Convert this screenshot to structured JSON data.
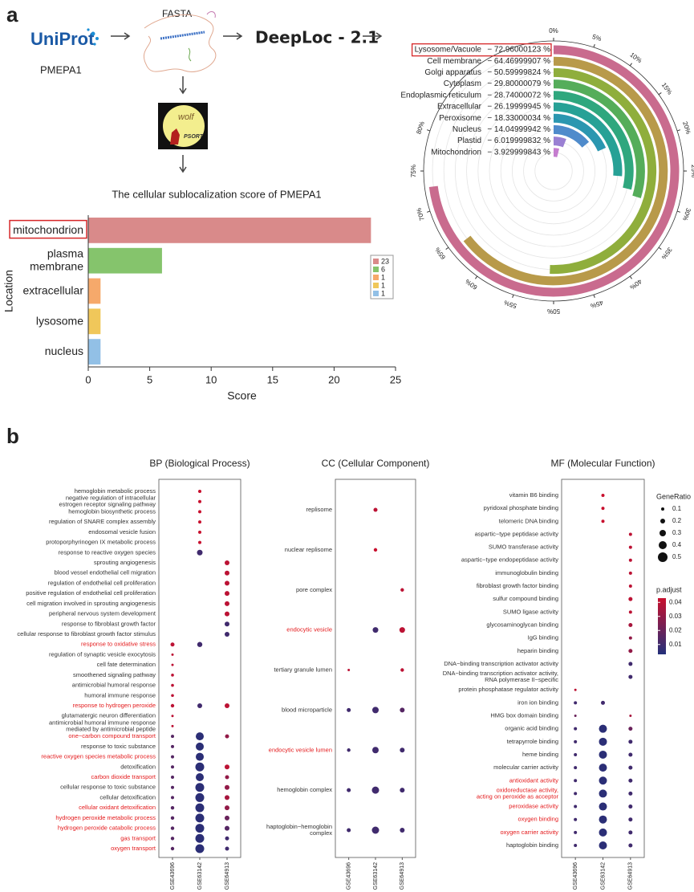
{
  "panel_labels": [
    "a",
    "b"
  ],
  "workflow": {
    "uniprot": "UniProt",
    "protein": "PMEPA1",
    "fasta": "FASTA",
    "deeploc": "DeepLoc - 2.1",
    "psort_wolf": "wolf",
    "psort": "PSORT"
  },
  "chart_data": [
    {
      "type": "barh",
      "title": "The cellular sublocalization score of PMEPA1",
      "categories": [
        "mitochondrion",
        [
          "plasma",
          "membrane"
        ],
        "extracellular",
        "lysosome",
        "nucleus"
      ],
      "values": [
        23,
        6,
        1,
        1,
        1
      ],
      "colors": [
        "#d98a8a",
        "#85c46c",
        "#f6a96b",
        "#f0c75a",
        "#92c0e6"
      ],
      "xlim": [
        0,
        25
      ],
      "xticks": [
        0,
        5,
        10,
        15,
        20,
        25
      ],
      "xlabel": "Score",
      "ylabel": "Location",
      "legend": "right"
    },
    {
      "type": "radial_bar",
      "categories": [
        "Lysosome/Vacuole",
        "Cell membrane",
        "Golgi apparatus",
        "Cytoplasm",
        "Endoplasmic reticulum",
        "Extracellular",
        "Peroxisome",
        "Nucleus",
        "Plastid",
        "Mitochondrion"
      ],
      "values": [
        72.96000123,
        64.46999907,
        50.59999824,
        29.80000079,
        28.74000072,
        26.19999945,
        18.33000034,
        14.04999942,
        6.019999832,
        3.929999843
      ],
      "value_labels": [
        "− 72.96000123 %",
        "− 64.46999907 %",
        "− 50.59999824 %",
        "− 29.80000079 %",
        "− 28.74000072 %",
        "− 26.19999945 %",
        "− 18.33000034 %",
        "− 14.04999942 %",
        "− 6.019999832 %",
        "− 3.929999843 %"
      ],
      "colors": [
        "#c96b8e",
        "#b89a4a",
        "#8fae3c",
        "#55ad5a",
        "#2fa77e",
        "#27a196",
        "#2b97b0",
        "#4f8bcb",
        "#9a80d3",
        "#c57dcf"
      ],
      "xlim": [
        0,
        100
      ],
      "xticks": [
        {
          "value": 0,
          "label": "0%"
        },
        {
          "value": 5,
          "label": "5%"
        },
        {
          "value": 10,
          "label": "10%"
        },
        {
          "value": 15,
          "label": "15%"
        },
        {
          "value": 20,
          "label": "20%"
        },
        {
          "value": 25,
          "label": "25%"
        },
        {
          "value": 30,
          "label": "30%"
        },
        {
          "value": 35,
          "label": "35%"
        },
        {
          "value": 40,
          "label": "40%"
        },
        {
          "value": 45,
          "label": "45%"
        },
        {
          "value": 50,
          "label": "50%"
        },
        {
          "value": 55,
          "label": "55%"
        },
        {
          "value": 60,
          "label": "60%"
        },
        {
          "value": 65,
          "label": "65%"
        },
        {
          "value": 70,
          "label": "70%"
        },
        {
          "value": 75,
          "label": "75%"
        },
        {
          "value": 80,
          "label": "80%"
        }
      ]
    },
    {
      "type": "dot",
      "title": "BP (Biological Process)",
      "terms": [
        "hemoglobin metabolic process",
        [
          "negative regulation of intracellular",
          "estrogen receptor signaling pathway"
        ],
        "hemoglobin biosynthetic process",
        "regulation of SNARE complex assembly",
        "endosomal vesicle fusion",
        "protoporphyrinogen IX metabolic process",
        "response to reactive oxygen species",
        "sprouting angiogenesis",
        "blood vessel endothelial cell migration",
        "regulation of endothelial cell proliferation",
        "positive regulation of endothelial cell proliferation",
        "cell migration involved in sprouting angiogenesis",
        "peripheral nervous system development",
        "response to fibroblast growth factor",
        "cellular response to fibroblast growth factor stimulus",
        "response to oxidative stress",
        "regulation of synaptic vesicle exocytosis",
        "cell fate determination",
        "smoothened signaling pathway",
        "antimicrobial humoral response",
        "humoral immune response",
        "response to hydrogen peroxide",
        "glutamatergic neuron differentiation",
        [
          "antimicrobial humoral immune response",
          "mediated by antimicrobial peptide"
        ],
        "one−carbon compound transport",
        "response to toxic substance",
        "reactive oxygen species metabolic process",
        "detoxification",
        "carbon dioxide transport",
        "cellular response to toxic substance",
        "cellular detoxification",
        "cellular oxidant detoxification",
        "hydrogen peroxide metabolic process",
        "hydrogen peroxide catabolic process",
        "gas transport",
        "oxygen transport"
      ],
      "label_colors": [
        "#333333",
        "#333333",
        "#333333",
        "#333333",
        "#333333",
        "#333333",
        "#333333",
        "#333333",
        "#333333",
        "#333333",
        "#333333",
        "#333333",
        "#333333",
        "#333333",
        "#333333",
        "#e41a1c",
        "#333333",
        "#333333",
        "#333333",
        "#333333",
        "#333333",
        "#e41a1c",
        "#333333",
        "#333333",
        "#e41a1c",
        "#333333",
        "#e41a1c",
        "#333333",
        "#e41a1c",
        "#333333",
        "#333333",
        "#e41a1c",
        "#e41a1c",
        "#e41a1c",
        "#e41a1c",
        "#e41a1c"
      ],
      "series": [
        {
          "name": "GSE43696",
          "gene_ratio": [
            null,
            null,
            null,
            null,
            null,
            null,
            null,
            null,
            null,
            null,
            null,
            null,
            null,
            null,
            null,
            0.15,
            0.05,
            0.05,
            0.08,
            0.08,
            0.08,
            0.12,
            0.05,
            0.05,
            0.1,
            0.1,
            0.1,
            0.1,
            0.1,
            0.1,
            0.1,
            0.12,
            0.12,
            0.12,
            0.12,
            0.12
          ],
          "p_adjust": [
            null,
            null,
            null,
            null,
            null,
            null,
            null,
            null,
            null,
            null,
            null,
            null,
            null,
            null,
            null,
            0.04,
            0.04,
            0.04,
            0.04,
            0.04,
            0.04,
            0.04,
            0.04,
            0.04,
            0.015,
            0.015,
            0.015,
            0.015,
            0.015,
            0.015,
            0.015,
            0.015,
            0.015,
            0.015,
            0.015,
            0.015
          ]
        },
        {
          "name": "GSE63142",
          "gene_ratio": [
            0.1,
            0.1,
            0.1,
            0.1,
            0.1,
            0.1,
            0.25,
            null,
            null,
            null,
            null,
            null,
            null,
            null,
            null,
            0.22,
            null,
            null,
            null,
            null,
            null,
            0.2,
            null,
            null,
            0.4,
            0.4,
            0.4,
            0.45,
            0.4,
            0.45,
            0.45,
            0.45,
            0.45,
            0.45,
            0.45,
            0.45
          ],
          "p_adjust": [
            0.045,
            0.045,
            0.045,
            0.045,
            0.045,
            0.045,
            0.01,
            null,
            null,
            null,
            null,
            null,
            null,
            null,
            null,
            0.01,
            null,
            null,
            null,
            null,
            null,
            0.01,
            null,
            null,
            0.005,
            0.005,
            0.005,
            0.005,
            0.005,
            0.005,
            0.005,
            0.005,
            0.005,
            0.005,
            0.005,
            0.005
          ]
        },
        {
          "name": "GSE64913",
          "gene_ratio": [
            null,
            null,
            null,
            null,
            null,
            null,
            null,
            0.2,
            0.2,
            0.2,
            0.2,
            0.2,
            0.2,
            0.2,
            0.2,
            null,
            null,
            null,
            null,
            null,
            null,
            0.2,
            null,
            null,
            0.15,
            null,
            null,
            0.2,
            0.15,
            0.2,
            0.2,
            0.2,
            0.2,
            0.2,
            0.15,
            0.15
          ],
          "p_adjust": [
            null,
            null,
            null,
            null,
            null,
            null,
            null,
            0.04,
            0.04,
            0.04,
            0.04,
            0.04,
            0.04,
            0.01,
            0.01,
            null,
            null,
            null,
            null,
            null,
            null,
            0.04,
            null,
            null,
            0.03,
            null,
            null,
            0.04,
            0.03,
            0.03,
            0.035,
            0.03,
            0.02,
            0.015,
            0.01,
            0.01
          ]
        }
      ]
    },
    {
      "type": "dot",
      "title": "CC (Cellular Component)",
      "terms": [
        "replisome",
        "nuclear replisome",
        "pore complex",
        "endocytic vesicle",
        "tertiary granule lumen",
        "blood microparticle",
        "endocytic vesicle lumen",
        "hemoglobin complex",
        [
          "haptoglobin−hemoglobin",
          "complex"
        ]
      ],
      "label_colors": [
        "#333333",
        "#333333",
        "#333333",
        "#e41a1c",
        "#333333",
        "#333333",
        "#e41a1c",
        "#333333",
        "#333333"
      ],
      "series": [
        {
          "name": "GSE43696",
          "gene_ratio": [
            null,
            null,
            null,
            null,
            0.05,
            0.15,
            0.12,
            0.15,
            0.15
          ],
          "p_adjust": [
            null,
            null,
            null,
            null,
            0.04,
            0.01,
            0.01,
            0.01,
            0.01
          ]
        },
        {
          "name": "GSE63142",
          "gene_ratio": [
            0.15,
            0.12,
            null,
            0.25,
            null,
            0.3,
            0.3,
            0.35,
            0.35
          ],
          "p_adjust": [
            0.04,
            0.045,
            null,
            0.01,
            null,
            0.01,
            0.01,
            0.01,
            0.01
          ]
        },
        {
          "name": "GSE64913",
          "gene_ratio": [
            null,
            null,
            0.12,
            0.25,
            0.12,
            0.2,
            0.2,
            0.2,
            0.2
          ],
          "p_adjust": [
            null,
            null,
            0.04,
            0.04,
            0.04,
            0.015,
            0.01,
            0.01,
            0.01
          ]
        }
      ]
    },
    {
      "type": "dot",
      "title": "MF (Molecular Function)",
      "terms": [
        "vitamin B6 binding",
        "pyridoxal phosphate binding",
        "telomeric DNA binding",
        "aspartic−type peptidase activity",
        "SUMO transferase activity",
        "aspartic−type endopeptidase activity",
        "immunoglobulin binding",
        "fibroblast growth factor binding",
        "sulfur compound binding",
        "SUMO ligase activity",
        "glycosaminoglycan binding",
        "IgG binding",
        "heparin binding",
        "DNA−binding transcription activator activity",
        [
          "DNA−binding transcription activator activity,",
          "RNA polymerase II−specific"
        ],
        "protein phosphatase regulator activity",
        "iron ion binding",
        "HMG box domain binding",
        "organic acid binding",
        "tetrapyrrole binding",
        "heme binding",
        "molecular carrier activity",
        "antioxidant activity",
        [
          "oxidoreductase activity,",
          "acting on peroxide as acceptor"
        ],
        "peroxidase activity",
        "oxygen binding",
        "oxygen carrier activity",
        "haptoglobin binding"
      ],
      "label_colors": [
        "#333333",
        "#333333",
        "#333333",
        "#333333",
        "#333333",
        "#333333",
        "#333333",
        "#333333",
        "#333333",
        "#333333",
        "#333333",
        "#333333",
        "#333333",
        "#333333",
        "#333333",
        "#333333",
        "#333333",
        "#333333",
        "#333333",
        "#333333",
        "#333333",
        "#333333",
        "#e41a1c",
        "#e41a1c",
        "#e41a1c",
        "#e41a1c",
        "#e41a1c",
        "#333333"
      ],
      "series": [
        {
          "name": "GSE43696",
          "gene_ratio": [
            null,
            null,
            null,
            null,
            null,
            null,
            null,
            null,
            null,
            null,
            null,
            null,
            null,
            null,
            null,
            0.05,
            0.1,
            0.05,
            0.1,
            0.1,
            0.1,
            0.1,
            0.1,
            0.1,
            0.1,
            0.1,
            0.1,
            0.1
          ],
          "p_adjust": [
            null,
            null,
            null,
            null,
            null,
            null,
            null,
            null,
            null,
            null,
            null,
            null,
            null,
            null,
            null,
            0.04,
            0.01,
            0.02,
            0.01,
            0.01,
            0.01,
            0.01,
            0.01,
            0.01,
            0.01,
            0.01,
            0.01,
            0.01
          ]
        },
        {
          "name": "GSE63142",
          "gene_ratio": [
            0.1,
            0.1,
            0.1,
            null,
            null,
            null,
            null,
            null,
            null,
            null,
            null,
            null,
            null,
            null,
            null,
            null,
            0.15,
            null,
            0.4,
            0.4,
            0.4,
            0.4,
            0.4,
            0.4,
            0.4,
            0.4,
            0.4,
            0.4
          ],
          "p_adjust": [
            0.045,
            0.045,
            0.045,
            null,
            null,
            null,
            null,
            null,
            null,
            null,
            null,
            null,
            null,
            null,
            null,
            null,
            0.01,
            null,
            0.005,
            0.005,
            0.005,
            0.005,
            0.005,
            0.005,
            0.005,
            0.005,
            0.005,
            0.005
          ]
        },
        {
          "name": "GSE64913",
          "gene_ratio": [
            null,
            null,
            null,
            0.1,
            0.1,
            0.1,
            0.1,
            0.1,
            0.15,
            0.1,
            0.15,
            0.1,
            0.15,
            0.15,
            0.15,
            null,
            null,
            0.05,
            0.15,
            0.15,
            0.15,
            0.15,
            0.15,
            0.15,
            0.15,
            0.15,
            0.15,
            0.15
          ],
          "p_adjust": [
            null,
            null,
            null,
            0.04,
            0.04,
            0.04,
            0.04,
            0.04,
            0.04,
            0.04,
            0.035,
            0.03,
            0.03,
            0.01,
            0.01,
            null,
            null,
            0.035,
            0.02,
            0.01,
            0.01,
            0.01,
            0.01,
            0.01,
            0.01,
            0.01,
            0.01,
            0.01
          ]
        }
      ],
      "size_legend": {
        "title": "GeneRatio",
        "values": [
          0.1,
          0.2,
          0.3,
          0.4,
          0.5
        ]
      },
      "color_legend": {
        "title": "p.adjust",
        "ticks": [
          0.04,
          0.03,
          0.02,
          0.01
        ],
        "lim": [
          0.003,
          0.043
        ],
        "colors": [
          "#23307a",
          "#c8102e"
        ]
      }
    }
  ]
}
